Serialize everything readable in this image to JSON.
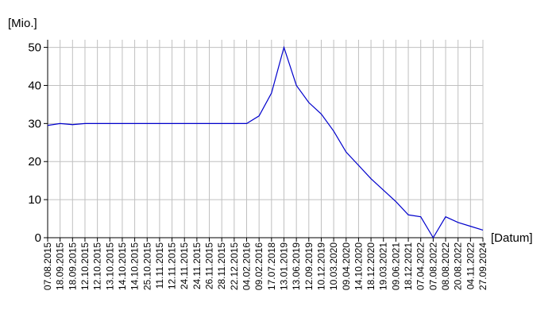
{
  "chart_data": {
    "type": "line",
    "y_label": "[Mio.]",
    "x_label": "[Datum]",
    "categories": [
      "07.08.2015",
      "18.09.2015",
      "18.09.2015",
      "12.10.2015",
      "12.10.2015",
      "13.10.2015",
      "14.10.2015",
      "14.10.2015",
      "25.10.2015",
      "11.11.2015",
      "12.11.2015",
      "24.11.2015",
      "24.11.2015",
      "26.11.2015",
      "28.11.2015",
      "22.12.2015",
      "04.02.2016",
      "09.02.2016",
      "17.07.2018",
      "13.01.2019",
      "13.06.2019",
      "12.09.2019",
      "10.12.2019",
      "10.03.2020",
      "09.04.2020",
      "14.10.2020",
      "18.12.2020",
      "19.03.2021",
      "09.06.2021",
      "18.12.2021",
      "07.04.2022",
      "07.08.2022",
      "08.08.2022",
      "20.08.2022",
      "04.11.2022",
      "27.09.2024"
    ],
    "values": [
      29.5,
      30,
      29.7,
      30,
      30,
      30,
      30,
      30,
      30,
      30,
      30,
      30,
      30,
      30,
      30,
      30,
      30,
      32,
      38,
      50,
      40,
      35.5,
      32.5,
      28,
      22.5,
      19,
      15.5,
      12.5,
      9.5,
      6,
      5.5,
      0,
      5.5,
      4,
      3,
      2
    ],
    "color": "#0000cc",
    "ylim": [
      0,
      52
    ],
    "yticks": [
      0,
      10,
      20,
      30,
      40,
      50
    ],
    "grid": true
  }
}
